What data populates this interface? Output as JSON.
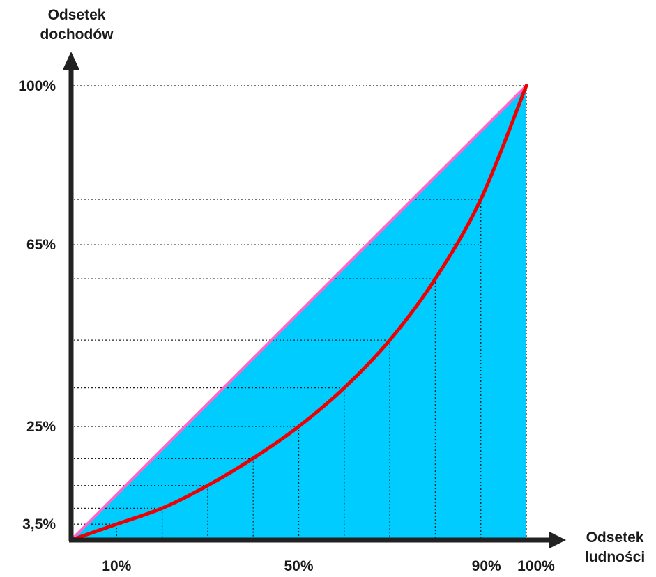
{
  "chart_data": {
    "type": "area",
    "ylabel": [
      "Odsetek",
      "dochodów"
    ],
    "xlabel": [
      "Odsetek",
      "ludności"
    ],
    "x_tick_labels": [
      {
        "x": 10,
        "label": "10%"
      },
      {
        "x": 50,
        "label": "50%"
      },
      {
        "x": 90,
        "label": "90%"
      },
      {
        "x": 100,
        "label": "100%"
      }
    ],
    "y_tick_labels": [
      {
        "y": 100,
        "label": "100%"
      },
      {
        "y": 65,
        "label": "65%"
      },
      {
        "y": 25,
        "label": "25%"
      },
      {
        "y": 3.5,
        "label": "3,5%"
      }
    ],
    "xlim": [
      0,
      100
    ],
    "ylim": [
      0,
      100
    ],
    "series": [
      {
        "role": "equality-line",
        "x": [
          0,
          100
        ],
        "y": [
          0,
          100
        ]
      },
      {
        "role": "lorenz-curve",
        "x": [
          0,
          10,
          20,
          30,
          40,
          50,
          60,
          70,
          80,
          90,
          100
        ],
        "y": [
          0,
          3.5,
          7,
          12,
          18,
          25,
          33.5,
          44,
          57.5,
          75,
          100
        ]
      }
    ],
    "colors": {
      "fill": "#00ccff",
      "equality_line": "#ff66cc",
      "lorenz_curve": "#ee0000",
      "axis": "#222222",
      "grid": "#222222"
    },
    "grid": true,
    "legend": "none"
  }
}
